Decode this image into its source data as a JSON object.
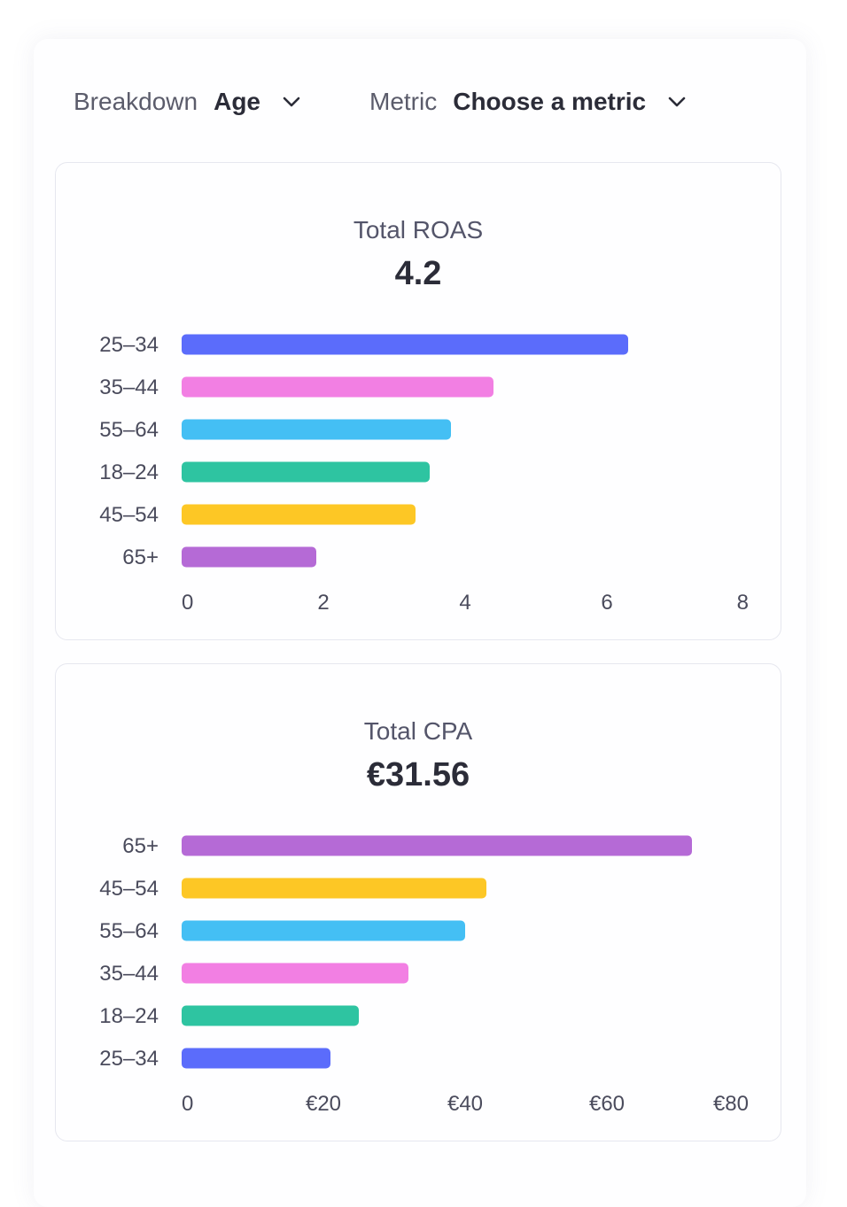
{
  "toolbar": {
    "breakdown_label": "Breakdown",
    "breakdown_value": "Age",
    "metric_label": "Metric",
    "metric_value": "Choose a metric"
  },
  "colors": {
    "25-34": "#5b6cfb",
    "35-44": "#f27fe3",
    "55-64": "#44bff4",
    "18-24": "#2ec4a1",
    "45-54": "#fdc725",
    "65+": "#b56ad6"
  },
  "cards": [
    {
      "title": "Total ROAS",
      "total": "4.2"
    },
    {
      "title": "Total CPA",
      "total": "€31.56"
    }
  ],
  "chart_data": [
    {
      "type": "bar",
      "orientation": "horizontal",
      "title": "Total ROAS",
      "subtitle": "4.2",
      "categories": [
        "25–34",
        "35–44",
        "55–64",
        "18–24",
        "45–54",
        "65+"
      ],
      "color_keys": [
        "25-34",
        "35-44",
        "55-64",
        "18-24",
        "45-54",
        "65+"
      ],
      "values": [
        6.3,
        4.4,
        3.8,
        3.5,
        3.3,
        1.9
      ],
      "xlim": [
        0,
        8
      ],
      "ticks": [
        0,
        2,
        4,
        6,
        8
      ],
      "tick_labels": [
        "0",
        "2",
        "4",
        "6",
        "8"
      ],
      "grid": false,
      "legend": "none"
    },
    {
      "type": "bar",
      "orientation": "horizontal",
      "title": "Total CPA",
      "subtitle": "€31.56",
      "categories": [
        "65+",
        "45–54",
        "55–64",
        "35–44",
        "18–24",
        "25–34"
      ],
      "color_keys": [
        "65+",
        "45-54",
        "55-64",
        "35-44",
        "18-24",
        "25-34"
      ],
      "values": [
        72,
        43,
        40,
        32,
        25,
        21
      ],
      "xlim": [
        0,
        80
      ],
      "ticks": [
        0,
        20,
        40,
        60,
        80
      ],
      "tick_labels": [
        "0",
        "€20",
        "€40",
        "€60",
        "€80"
      ],
      "grid": false,
      "legend": "none"
    }
  ]
}
